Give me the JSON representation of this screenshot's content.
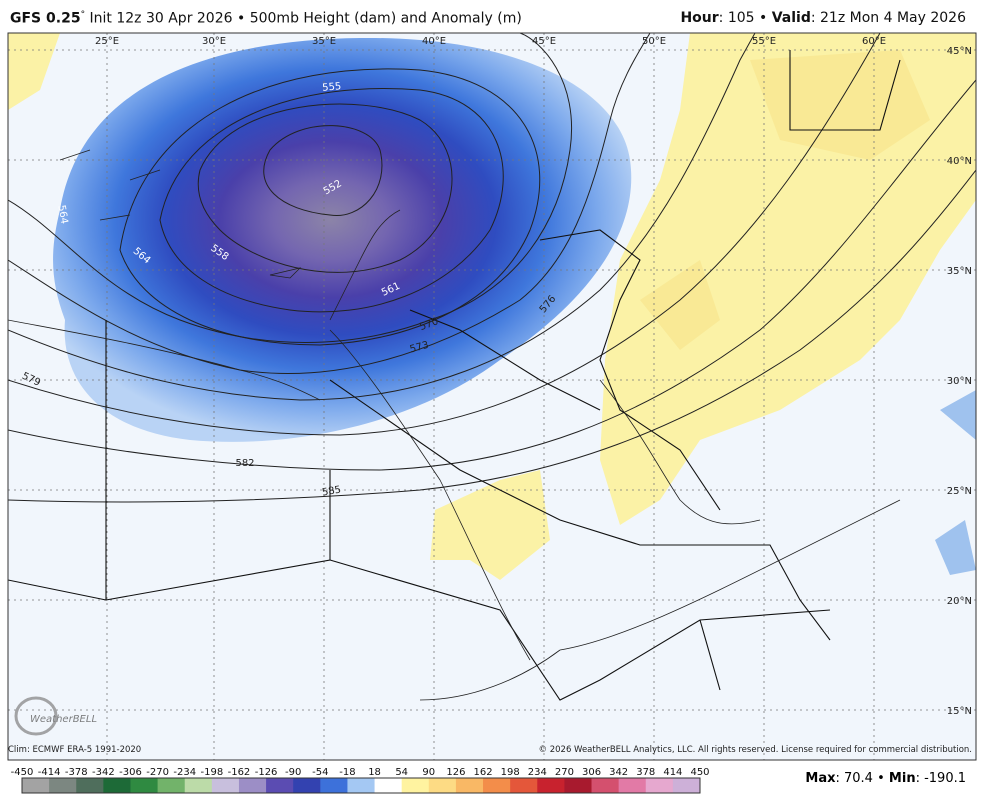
{
  "header": {
    "model": "GFS 0.25",
    "degree": "°",
    "init": "Init 12z 30 Apr 2026",
    "bullet": "•",
    "product": "500mb Height (dam) and Anomaly (m)",
    "hour_label": "Hour",
    "hour_value": ": 105",
    "valid_label": "Valid",
    "valid_value": ": 21z Mon 4 May 2026"
  },
  "map": {
    "lon_labels": [
      "25°E",
      "30°E",
      "35°E",
      "40°E",
      "45°E",
      "50°E",
      "55°E",
      "60°E"
    ],
    "lat_labels": [
      "45°N",
      "40°N",
      "35°N",
      "30°N",
      "25°N",
      "20°N",
      "15°N"
    ],
    "contour_labels": [
      "555",
      "552",
      "558",
      "564",
      "561",
      "570",
      "573",
      "576",
      "579",
      "582",
      "585",
      "564"
    ],
    "logo": "WeatherBELL"
  },
  "footer": {
    "climo": "Clim: ECMWF ERA-5 1991-2020",
    "copyright": "© 2026 WeatherBELL Analytics, LLC. All rights reserved. License required for commercial distribution."
  },
  "colorbar": {
    "labels": [
      -450,
      -414,
      -378,
      -342,
      -306,
      -270,
      -234,
      -198,
      -162,
      -126,
      -90,
      -54,
      -18,
      18,
      54,
      90,
      126,
      162,
      198,
      234,
      270,
      306,
      342,
      378,
      414,
      450
    ],
    "colors": [
      "#a3a3a3",
      "#7c8781",
      "#4f6e5c",
      "#1d6a37",
      "#2f8a41",
      "#72b36a",
      "#bcdba8",
      "#c8bfdd",
      "#9c8ec6",
      "#5b4cb2",
      "#3342b0",
      "#3d71da",
      "#a4c8f3",
      "#ffffff",
      "#fff3a0",
      "#fddb84",
      "#f9b865",
      "#f38d4a",
      "#e4573a",
      "#c8222e",
      "#a81a2e",
      "#d4506e",
      "#e27aa6",
      "#e6a8cf",
      "#cdb0d8"
    ]
  },
  "stats": {
    "max_label": "Max",
    "max_value": ": 70.4",
    "bullet": "•",
    "min_label": "Min",
    "min_value": ": -190.1"
  }
}
